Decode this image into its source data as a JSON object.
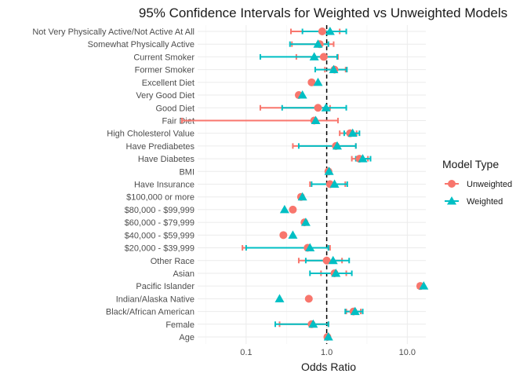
{
  "chart_data": {
    "type": "forest",
    "title": "95% Confidence Intervals for Weighted vs Unweighted Models",
    "xlabel": "Odds Ratio",
    "ylabel": "",
    "x_scale": "log10",
    "xlim": [
      0.025,
      17
    ],
    "x_ticks": [
      {
        "value": 0.1,
        "label": "0.1"
      },
      {
        "value": 1.0,
        "label": "1.0"
      },
      {
        "value": 10.0,
        "label": "10.0"
      }
    ],
    "reference_line": 1.0,
    "categories": [
      "Not Very Physically Active/Not Active At All",
      "Somewhat Physically Active",
      "Current Smoker",
      "Former Smoker",
      "Excellent Diet",
      "Very Good Diet",
      "Good Diet",
      "Fair Diet",
      "High Cholesterol Value",
      "Have Prediabetes",
      "Have Diabetes",
      "BMI",
      "Have Insurance",
      "$100,000 or more",
      "$80,000 - $99,999",
      "$60,000 - $79,999",
      "$40,000 - $59,999",
      "$20,000 - $39,999",
      "Other Race",
      "Asian",
      "Pacific Islander",
      "Indian/Alaska Native",
      "Black/African American",
      "Female",
      "Age"
    ],
    "legend": {
      "title": "Model Type",
      "position": "right"
    },
    "series": [
      {
        "name": "Unweighted",
        "color": "#F8766D",
        "marker": "circle",
        "estimates": [
          0.88,
          0.82,
          0.92,
          1.25,
          0.65,
          0.45,
          0.78,
          0.7,
          1.95,
          1.3,
          2.55,
          1.05,
          1.1,
          0.48,
          0.38,
          0.53,
          0.29,
          0.58,
          1.0,
          1.25,
          14.5,
          0.6,
          2.15,
          0.65,
          1.02
        ],
        "lower": [
          0.36,
          0.37,
          0.42,
          0.95,
          null,
          null,
          0.15,
          0.016,
          1.45,
          0.38,
          2.05,
          null,
          0.62,
          null,
          null,
          null,
          null,
          0.09,
          0.45,
          0.85,
          13.5,
          null,
          1.75,
          0.26,
          null
        ],
        "upper": [
          1.45,
          1.22,
          1.38,
          1.72,
          null,
          null,
          1.1,
          1.38,
          2.35,
          2.3,
          3.25,
          null,
          1.7,
          null,
          null,
          null,
          null,
          1.1,
          1.55,
          1.75,
          16.0,
          null,
          2.65,
          1.05,
          null
        ]
      },
      {
        "name": "Weighted",
        "color": "#00BFC4",
        "marker": "triangle",
        "estimates": [
          1.1,
          0.78,
          0.7,
          1.22,
          0.78,
          0.5,
          0.98,
          0.73,
          2.1,
          1.35,
          2.8,
          1.07,
          1.25,
          0.5,
          0.3,
          0.55,
          0.38,
          0.62,
          1.2,
          1.3,
          16.0,
          0.26,
          2.25,
          0.68,
          1.05
        ],
        "lower": [
          0.5,
          0.35,
          0.15,
          0.72,
          null,
          null,
          0.28,
          null,
          1.65,
          0.45,
          2.3,
          null,
          0.65,
          null,
          null,
          null,
          null,
          0.1,
          0.55,
          0.62,
          null,
          null,
          1.7,
          0.23,
          null
        ],
        "upper": [
          1.75,
          1.05,
          1.35,
          1.78,
          null,
          null,
          1.75,
          null,
          2.55,
          2.3,
          3.5,
          null,
          1.8,
          null,
          null,
          null,
          null,
          1.05,
          1.9,
          2.05,
          null,
          null,
          2.8,
          1.05,
          null
        ]
      }
    ]
  }
}
